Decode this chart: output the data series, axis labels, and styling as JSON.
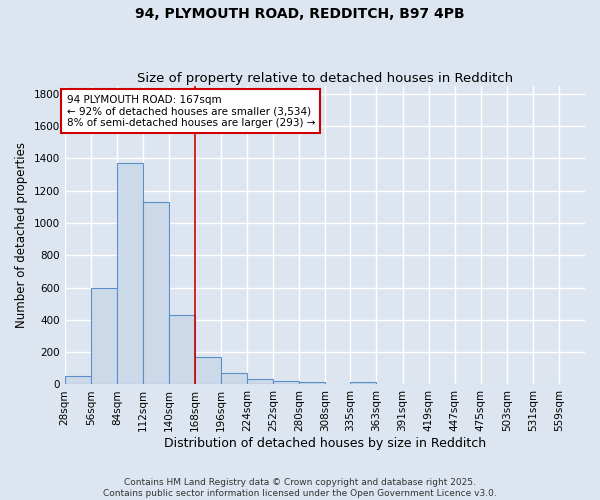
{
  "title": "94, PLYMOUTH ROAD, REDDITCH, B97 4PB",
  "subtitle": "Size of property relative to detached houses in Redditch",
  "xlabel": "Distribution of detached houses by size in Redditch",
  "ylabel": "Number of detached properties",
  "bin_edges": [
    28,
    56,
    84,
    112,
    140,
    168,
    196,
    224,
    252,
    280,
    308,
    335,
    363,
    391,
    419,
    447,
    475,
    503,
    531,
    559,
    587
  ],
  "bar_heights": [
    55,
    600,
    1370,
    1130,
    430,
    170,
    70,
    35,
    20,
    15,
    0,
    15,
    0,
    0,
    0,
    0,
    0,
    0,
    0,
    0
  ],
  "bar_color": "#ccd9e8",
  "bar_edge_color": "#5b8fc9",
  "vline_x": 168,
  "vline_color": "#cc0000",
  "annotation_text": "94 PLYMOUTH ROAD: 167sqm\n← 92% of detached houses are smaller (3,534)\n8% of semi-detached houses are larger (293) →",
  "annotation_box_color": "white",
  "annotation_border_color": "#cc0000",
  "ylim": [
    0,
    1850
  ],
  "yticks": [
    0,
    200,
    400,
    600,
    800,
    1000,
    1200,
    1400,
    1600,
    1800
  ],
  "background_color": "#dde6f0",
  "grid_color": "white",
  "footnote": "Contains HM Land Registry data © Crown copyright and database right 2025.\nContains public sector information licensed under the Open Government Licence v3.0.",
  "title_fontsize": 10,
  "subtitle_fontsize": 9.5,
  "xlabel_fontsize": 9,
  "ylabel_fontsize": 8.5,
  "tick_fontsize": 7.5,
  "annotation_fontsize": 7.5,
  "footnote_fontsize": 6.5
}
